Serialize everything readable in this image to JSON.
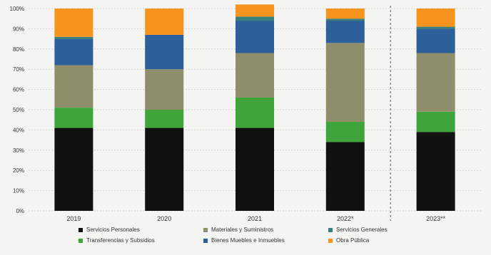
{
  "chart_data": {
    "type": "bar",
    "stacked": true,
    "categories": [
      "2019",
      "2020",
      "2021",
      "2022*",
      "2023**"
    ],
    "ylim": [
      0,
      100
    ],
    "yticks": [
      "0%",
      "10%",
      "20%",
      "30%",
      "40%",
      "50%",
      "60%",
      "70%",
      "80%",
      "90%",
      "100%"
    ],
    "grid": true,
    "legend_position": "bottom",
    "series": [
      {
        "name": "Servicios Personales",
        "color": "#111111",
        "values": [
          41,
          41,
          41,
          34,
          39
        ]
      },
      {
        "name": "Transferencias y Subsidios",
        "color": "#3fa53a",
        "values": [
          10,
          9,
          15,
          10,
          10
        ]
      },
      {
        "name": "Materiales y Suministros",
        "color": "#8e8e6a",
        "values": [
          21,
          20,
          22,
          39,
          29
        ]
      },
      {
        "name": "Bienes Muebles e Inmuebles",
        "color": "#2d5f9a",
        "values": [
          13,
          17,
          16,
          11,
          12
        ]
      },
      {
        "name": "Servicios Generales",
        "color": "#3a7f7a",
        "values": [
          1,
          0,
          2,
          1,
          1
        ]
      },
      {
        "name": "Obra Pública",
        "color": "#f7941d",
        "values": [
          14,
          13,
          6,
          5,
          9
        ]
      }
    ],
    "legend_order": [
      "Servicios Personales",
      "Materiales y Suministros",
      "Servicios Generales",
      "Transferencias y Subsidios",
      "Bienes Muebles e Inmuebles",
      "Obra Pública"
    ],
    "separator_before_category": "2023**"
  }
}
